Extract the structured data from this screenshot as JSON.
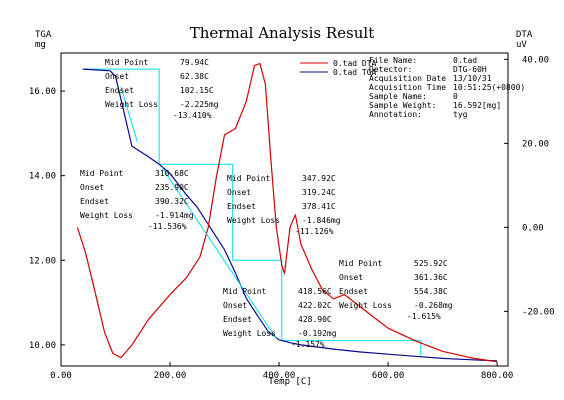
{
  "chart_data": {
    "type": "line",
    "title": "Thermal Analysis Result",
    "xlabel": "Temp [C]",
    "left_axis": {
      "label": "TGA",
      "unit": "mg",
      "ylim": [
        9.5,
        16.9
      ],
      "ticks": [
        "16.00",
        "14.00",
        "12.00",
        "10.00"
      ]
    },
    "right_axis": {
      "label": "DTA",
      "unit": "uV",
      "ylim": [
        -33.0,
        41.5
      ],
      "ticks": [
        "40.00",
        "20.00",
        "0.00",
        "-20.00"
      ]
    },
    "xlim": [
      0,
      820
    ],
    "xticks": [
      "0.00",
      "200.00",
      "400.00",
      "600.00",
      "800.00"
    ],
    "legend": {
      "position": "top-right",
      "entries": [
        {
          "label": "0.tad DTA",
          "color": "#d40000"
        },
        {
          "label": "0.tad TGA",
          "color": "#0a0a8c"
        }
      ]
    },
    "info": [
      {
        "key": "File Name:",
        "value": "0.tad"
      },
      {
        "key": "Detector:",
        "value": "DTG-60H"
      },
      {
        "key": "Acquisition Date",
        "value": "13/10/31"
      },
      {
        "key": "Acquisition Time",
        "value": "10:51:25(+0800)"
      },
      {
        "key": "Sample Name:",
        "value": "0"
      },
      {
        "key": "Sample Weight:",
        "value": "16.592[mg]"
      },
      {
        "key": "Annotation:",
        "value": "tyg"
      }
    ],
    "series": [
      {
        "name": "0.tad TGA",
        "axis": "left",
        "color": "#0a0a8c",
        "x": [
          40,
          90,
          100,
          110,
          130,
          160,
          180,
          200,
          230,
          250,
          270,
          300,
          320,
          340,
          360,
          380,
          400,
          420,
          440,
          470,
          500,
          550,
          600,
          650,
          700,
          750,
          800
        ],
        "y": [
          16.52,
          16.48,
          16.35,
          15.8,
          14.7,
          14.45,
          14.27,
          14.05,
          13.55,
          13.25,
          12.85,
          12.25,
          11.7,
          11.1,
          10.7,
          10.32,
          10.12,
          10.05,
          10.0,
          9.95,
          9.9,
          9.83,
          9.78,
          9.73,
          9.68,
          9.65,
          9.62
        ]
      },
      {
        "name": "0.tad DTA",
        "axis": "right",
        "color": "#d40000",
        "x": [
          30,
          45,
          60,
          80,
          95,
          110,
          130,
          160,
          200,
          230,
          255,
          270,
          285,
          300,
          320,
          340,
          355,
          365,
          375,
          385,
          395,
          405,
          410,
          420,
          430,
          440,
          460,
          480,
          500,
          520,
          540,
          570,
          600,
          650,
          700,
          750,
          800
        ],
        "y": [
          0,
          -6,
          -14,
          -25,
          -30,
          -31,
          -28,
          -22,
          -16,
          -12,
          -7,
          0,
          12,
          22,
          23.5,
          30,
          38.5,
          39,
          34,
          16,
          0,
          -9,
          -11,
          0,
          3,
          -4,
          -10,
          -15,
          -17,
          -16,
          -18,
          -21,
          -24,
          -27,
          -29.5,
          -31,
          -32
        ]
      }
    ],
    "annotations": [
      {
        "mid_label": "Mid Point",
        "mid": "79.94C",
        "onset_label": "Onset",
        "onset": "62.38C",
        "endset_label": "Endset",
        "endset": "102.15C",
        "loss_label": "Weight Loss",
        "loss_mg": "-2.225mg",
        "loss_pct": "-13.410%"
      },
      {
        "mid_label": "Mid Point",
        "mid": "310.68C",
        "onset_label": "Onset",
        "onset": "235.90C",
        "endset_label": "Endset",
        "endset": "390.32C",
        "loss_label": "Weight Loss",
        "loss_mg": "-1.914mg",
        "loss_pct": "-11.536%"
      },
      {
        "mid_label": "Mid Point",
        "mid": "347.92C",
        "onset_label": "Onset",
        "onset": "319.24C",
        "endset_label": "Endset",
        "endset": "378.41C",
        "loss_label": "Weight Loss",
        "loss_mg": "-1.846mg",
        "loss_pct": "-11.126%"
      },
      {
        "mid_label": "Mid Point",
        "mid": "418.56C",
        "onset_label": "Onset",
        "onset": "422.02C",
        "endset_label": "Endset",
        "endset": "428.90C",
        "loss_label": "Weight Loss",
        "loss_mg": "-0.192mg",
        "loss_pct": "-1.157%"
      },
      {
        "mid_label": "Mid Point",
        "mid": "525.92C",
        "onset_label": "Onset",
        "onset": "361.36C",
        "endset_label": "Endset",
        "endset": "554.38C",
        "loss_label": "Weight Loss",
        "loss_mg": "-0.268mg",
        "loss_pct": "-1.615%"
      }
    ],
    "step_boxes": [
      {
        "x1": 40,
        "x2": 180,
        "y1": 16.52,
        "y2": 14.27
      },
      {
        "x1": 180,
        "x2": 315,
        "y1": 14.27,
        "y2": 12.0
      },
      {
        "x1": 315,
        "x2": 405,
        "y1": 12.0,
        "y2": 10.1
      },
      {
        "x1": 405,
        "x2": 660,
        "y1": 10.1,
        "y2": 9.74
      }
    ],
    "grid": false,
    "colors": {
      "box": "#00e0ee",
      "axis": "#000000"
    }
  }
}
